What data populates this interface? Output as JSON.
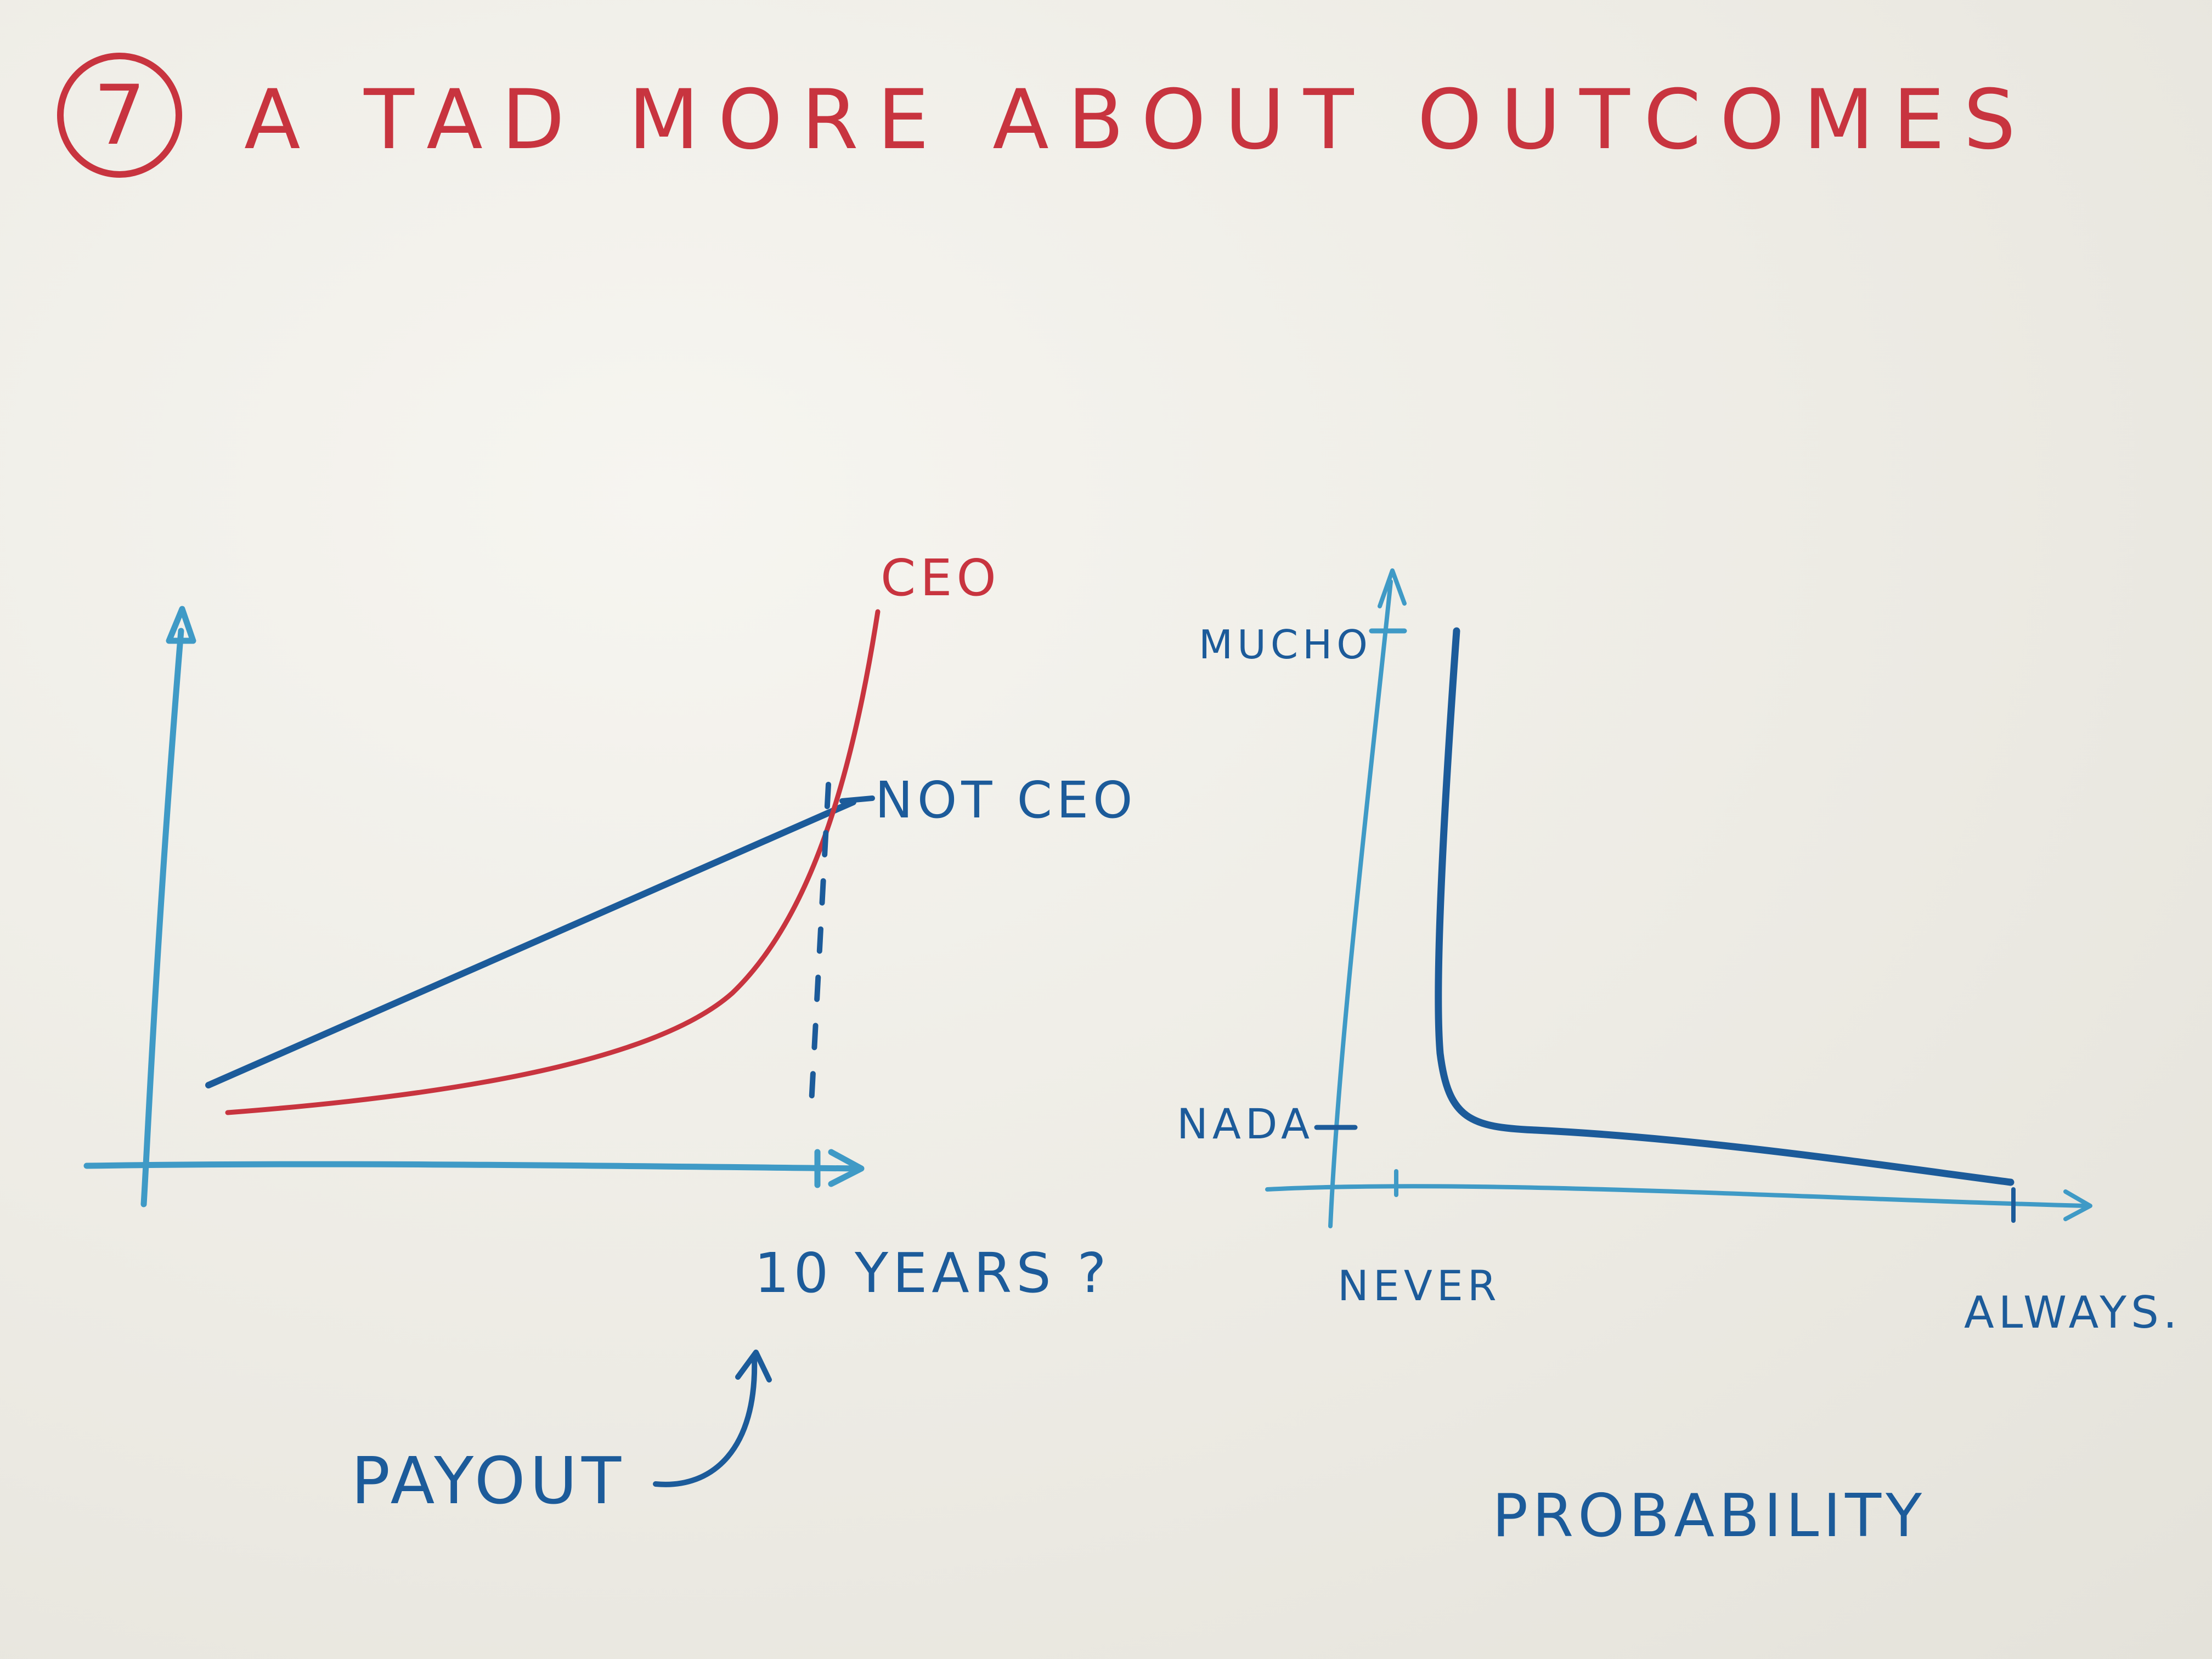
{
  "title": {
    "number": "7",
    "text": "A TAD MORE ABOUT OUTCOMES"
  },
  "colors": {
    "title_red": "#c8343f",
    "curve_red": "#c8343f",
    "dark_blue": "#1c5b9a",
    "light_blue": "#3f9ac6"
  },
  "left_chart": {
    "series_labels": {
      "ceo": "CEO",
      "not_ceo": "NOT CEO"
    },
    "x_marker_label": "10 YEARS ?",
    "axis_label": "PAYOUT"
  },
  "right_chart": {
    "y_top_label": "MUCHO",
    "y_bottom_label": "NADA",
    "x_left_label": "NEVER",
    "x_right_label": "ALWAYS.",
    "axis_label": "PROBABILITY"
  }
}
